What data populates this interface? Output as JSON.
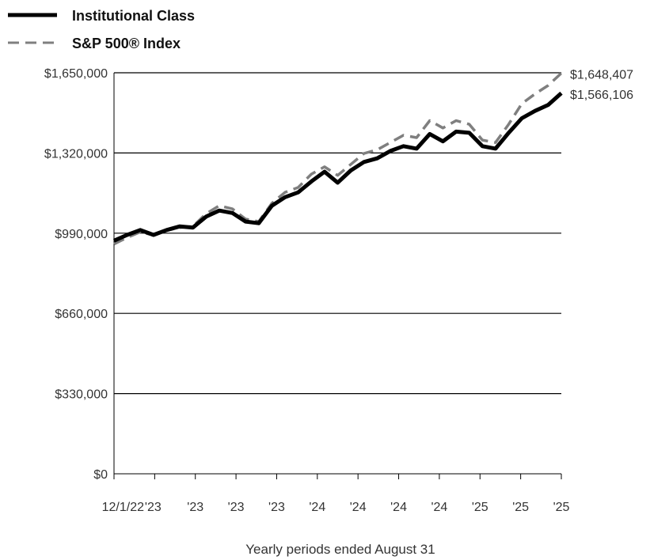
{
  "chart_data": {
    "type": "line",
    "xlabel": "Yearly periods ended August 31",
    "ylabel": "",
    "ylim": [
      0,
      1650000
    ],
    "yticks": [
      0,
      330000,
      660000,
      990000,
      1320000,
      1650000
    ],
    "ytick_labels": [
      "$0",
      "$330,000",
      "$660,000",
      "$990,000",
      "$1,320,000",
      "$1,650,000"
    ],
    "xtick_labels": [
      "12/1/22",
      "'23",
      "'23",
      "'23",
      "'23",
      "'24",
      "'24",
      "'24",
      "'24",
      "'25",
      "'25",
      "'25"
    ],
    "grid": "horizontal",
    "legend_position": "top-left",
    "series": [
      {
        "name": "Institutional Class",
        "color": "#000000",
        "style": "solid",
        "end_label": "$1,566,106",
        "values": [
          959000,
          983000,
          1003000,
          983000,
          1003000,
          1018000,
          1013000,
          1058000,
          1083000,
          1073000,
          1038000,
          1031000,
          1103000,
          1138000,
          1158000,
          1203000,
          1243000,
          1198000,
          1248000,
          1283000,
          1298000,
          1328000,
          1348000,
          1338000,
          1398000,
          1368000,
          1408000,
          1403000,
          1348000,
          1338000,
          1403000,
          1463000,
          1493000,
          1518000,
          1566106
        ]
      },
      {
        "name": "S&P 500® Index",
        "color": "#7f7f7f",
        "style": "dashed",
        "end_label": "$1,648,407",
        "values": [
          945000,
          972000,
          995000,
          982000,
          1002000,
          1013000,
          1018000,
          1070000,
          1103000,
          1090000,
          1048000,
          1038000,
          1113000,
          1158000,
          1178000,
          1233000,
          1263000,
          1228000,
          1273000,
          1318000,
          1333000,
          1363000,
          1393000,
          1383000,
          1453000,
          1423000,
          1453000,
          1438000,
          1373000,
          1363000,
          1438000,
          1523000,
          1563000,
          1598000,
          1648407
        ]
      }
    ]
  }
}
